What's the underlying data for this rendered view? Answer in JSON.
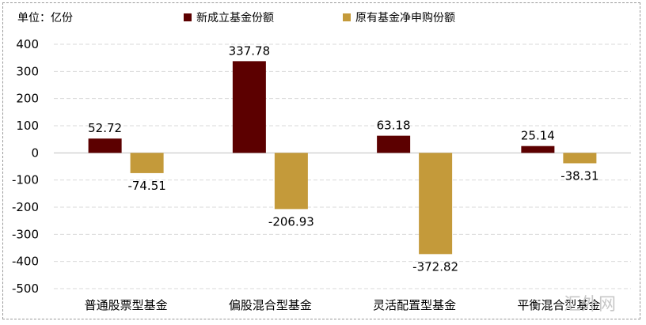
{
  "unit_label": "单位：亿份",
  "watermark": "汇外网",
  "colors": {
    "series1": "#5c0000",
    "series2": "#c49a3a",
    "grid": "#d9d9d9",
    "axis": "#bfbfbf"
  },
  "chart_data": {
    "type": "bar",
    "categories": [
      "普通股票型基金",
      "偏股混合型基金",
      "灵活配置型基金",
      "平衡混合型基金"
    ],
    "series": [
      {
        "name": "新成立基金份额",
        "values": [
          52.72,
          337.78,
          63.18,
          25.14
        ]
      },
      {
        "name": "原有基金净申购份额",
        "values": [
          -74.51,
          -206.93,
          -372.82,
          -38.31
        ]
      }
    ],
    "ylim": [
      -500,
      400
    ],
    "yticks": [
      400,
      300,
      200,
      100,
      0,
      -100,
      -200,
      -300,
      -400,
      -500
    ],
    "grid": true,
    "legend_position": "top",
    "data_labels": true
  }
}
